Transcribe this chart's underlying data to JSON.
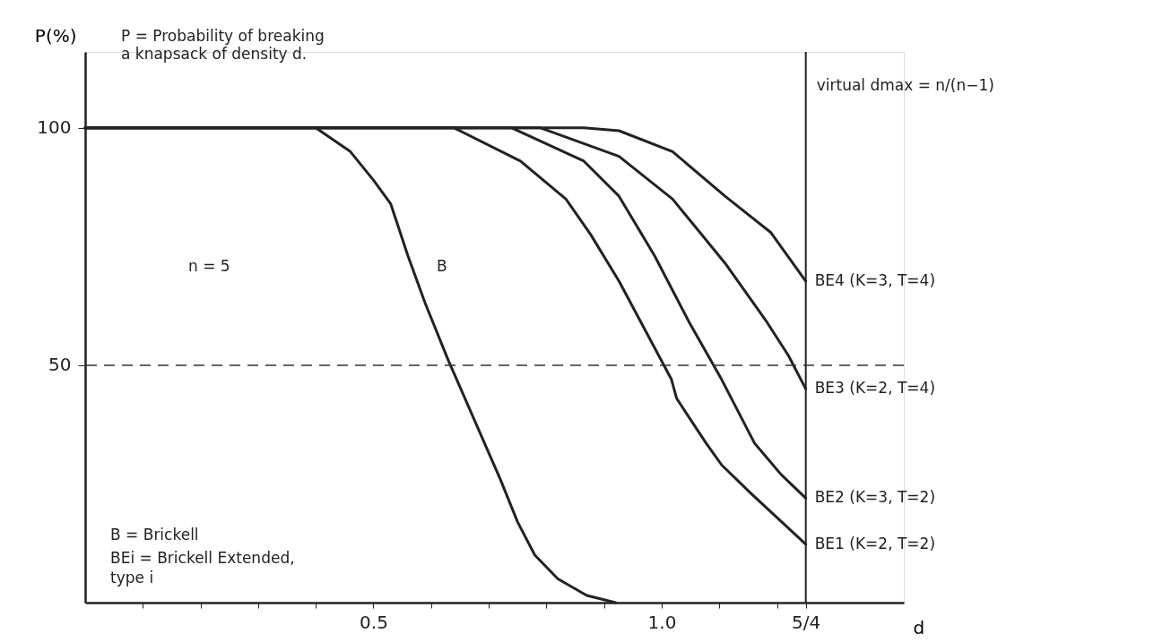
{
  "chart_data": {
    "type": "line",
    "title": "P = Probability of breaking\n    a knapsack of density d.",
    "xlabel": "d",
    "ylabel": "P(%)",
    "xlim": [
      0,
      1.42
    ],
    "ylim": [
      0,
      116
    ],
    "xticks": [
      {
        "value": 0.1,
        "label": null
      },
      {
        "value": 0.2,
        "label": null
      },
      {
        "value": 0.3,
        "label": null
      },
      {
        "value": 0.4,
        "label": null
      },
      0.5,
      {
        "value": 0.6,
        "label": null
      },
      {
        "value": 0.7,
        "label": null
      },
      {
        "value": 0.8,
        "label": null
      },
      {
        "value": 0.9,
        "label": null
      },
      {
        "value": 1.0,
        "label": "1.0"
      },
      {
        "value": 1.1,
        "label": null
      },
      {
        "value": 1.2,
        "label": null
      },
      {
        "value": 1.25,
        "label": "5/4"
      }
    ],
    "yticks": [
      50,
      100
    ],
    "grid": false,
    "marker": "none",
    "line_style": "solid",
    "series": [
      {
        "color": "#222222",
        "x": [
          0,
          0.4,
          0.46,
          0.5,
          0.53,
          0.56,
          0.59,
          0.63,
          0.72,
          0.75,
          0.78,
          0.82,
          0.87,
          0.92
        ],
        "values": [
          100,
          100,
          95,
          89,
          84,
          73,
          63,
          51,
          26,
          17,
          10,
          5,
          1.5,
          0
        ]
      },
      {
        "name": "BE1 (K=2, T=2)",
        "color": "#222222",
        "x": [
          0,
          0.64,
          0.755,
          0.834,
          0.877,
          0.926,
          1.017,
          1.026,
          1.077,
          1.104,
          1.155,
          1.25
        ],
        "values": [
          100,
          100,
          93,
          85,
          77.5,
          67.7,
          47,
          43,
          33.6,
          29,
          23,
          12.3
        ]
      },
      {
        "name": "BE2 (K=3, T=2)",
        "color": "#222222",
        "x": [
          0,
          0.74,
          0.865,
          0.926,
          0.988,
          1.048,
          1.104,
          1.161,
          1.207,
          1.25
        ],
        "values": [
          100,
          100,
          93,
          85.6,
          73,
          59,
          47,
          33.6,
          27,
          22
        ]
      },
      {
        "name": "BE3 (K=2, T=4)",
        "color": "#222222",
        "x": [
          0,
          0.79,
          0.926,
          1.019,
          1.11,
          1.183,
          1.22,
          1.25
        ],
        "values": [
          100,
          100,
          94,
          85,
          71.5,
          59,
          52,
          45
        ]
      },
      {
        "name": "BE4 (K=3, T=4)",
        "color": "#222222",
        "x": [
          0,
          0.865,
          0.926,
          1.019,
          1.11,
          1.189,
          1.25
        ],
        "values": [
          100,
          100,
          99.4,
          95,
          85.6,
          78,
          67.7
        ]
      }
    ],
    "ref_lines": [
      {
        "axis": "x",
        "value": 1.25,
        "label": "virtual dmax = n/(n−1)",
        "color": "#222222",
        "line_style": "solid"
      },
      {
        "axis": "y",
        "value": 50,
        "color": "#333333",
        "line_style": "dashed"
      }
    ],
    "annotations": [
      "n = 5",
      "B   = Brickell",
      "BEi = Brickell Extended,\n       type i",
      "B"
    ]
  }
}
